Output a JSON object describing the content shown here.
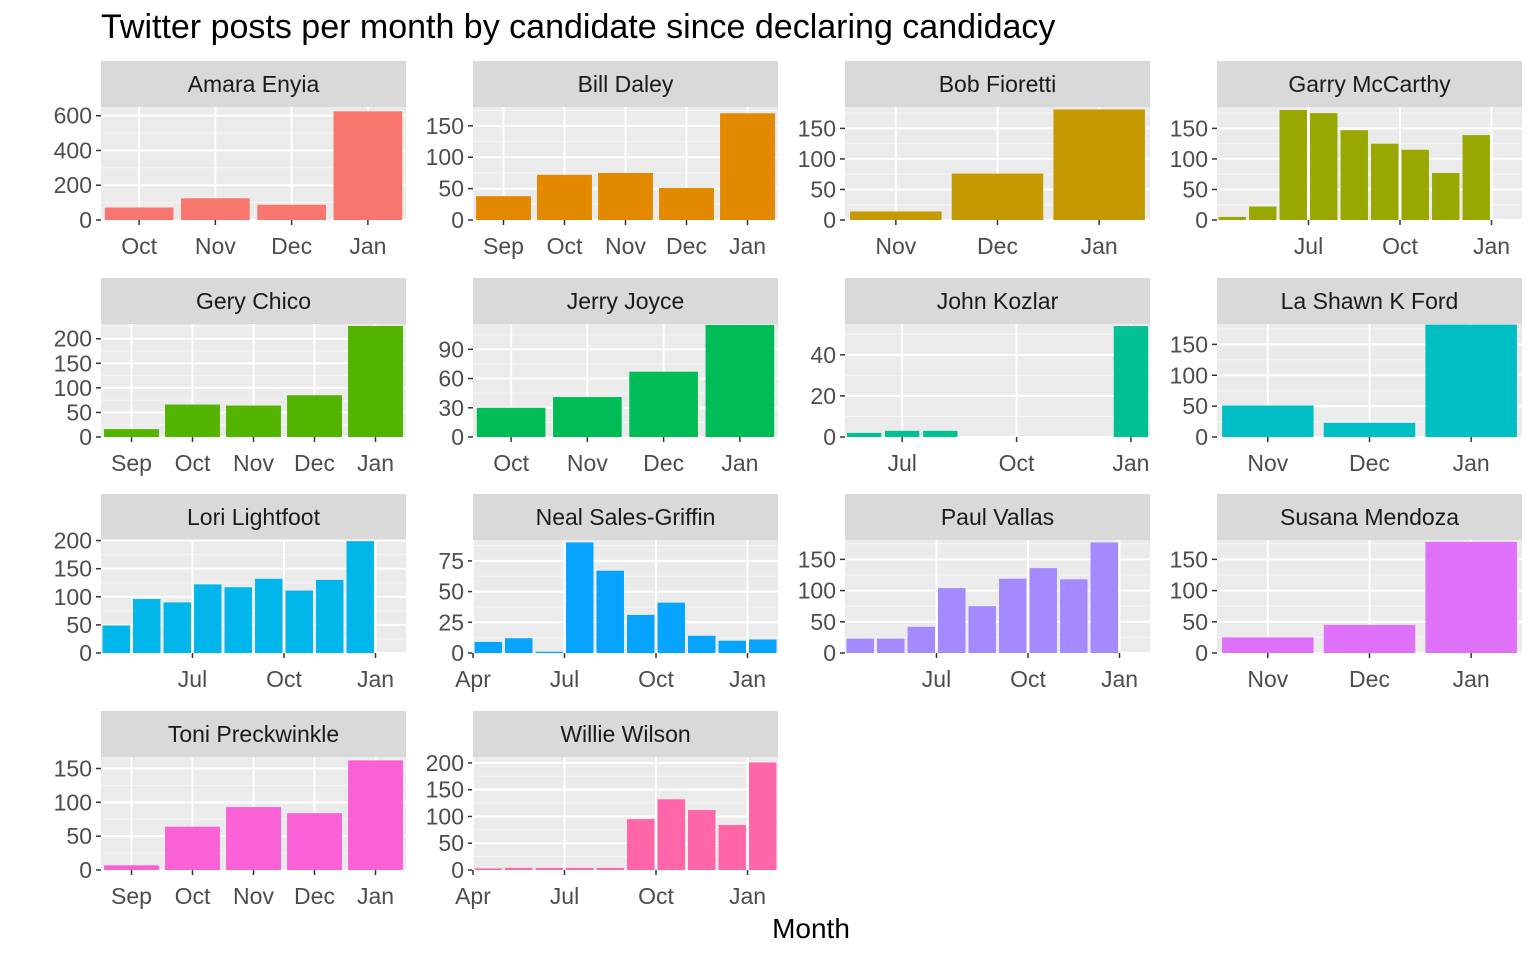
{
  "chart_data": {
    "type": "bar",
    "title": "Twitter posts per month by candidate since declaring candidacy",
    "xlabel": "Month",
    "ylabel": "",
    "grid": true,
    "legend": "none",
    "facets": [
      {
        "name": "Amara Enyia",
        "color": "#F8766D",
        "ylim": [
          0,
          650
        ],
        "yticks": [
          0,
          200,
          400,
          600
        ],
        "xlim": [
          0,
          4
        ],
        "xticks": [
          {
            "label": "Oct",
            "x": 0.5
          },
          {
            "label": "Nov",
            "x": 1.5
          },
          {
            "label": "Dec",
            "x": 2.5
          },
          {
            "label": "Jan",
            "x": 3.5
          }
        ],
        "bars": [
          {
            "x": 0.5,
            "w": 0.9,
            "y": 72
          },
          {
            "x": 1.5,
            "w": 0.9,
            "y": 125
          },
          {
            "x": 2.5,
            "w": 0.9,
            "y": 88
          },
          {
            "x": 3.5,
            "w": 0.9,
            "y": 625
          }
        ]
      },
      {
        "name": "Bill Daley",
        "color": "#E38900",
        "ylim": [
          0,
          180
        ],
        "yticks": [
          0,
          50,
          100,
          150
        ],
        "xlim": [
          0,
          5
        ],
        "xticks": [
          {
            "label": "Sep",
            "x": 0.5
          },
          {
            "label": "Oct",
            "x": 1.5
          },
          {
            "label": "Nov",
            "x": 2.5
          },
          {
            "label": "Dec",
            "x": 3.5
          },
          {
            "label": "Jan",
            "x": 4.5
          }
        ],
        "bars": [
          {
            "x": 0.5,
            "w": 0.9,
            "y": 38
          },
          {
            "x": 1.5,
            "w": 0.9,
            "y": 72
          },
          {
            "x": 2.5,
            "w": 0.9,
            "y": 75
          },
          {
            "x": 3.5,
            "w": 0.9,
            "y": 51
          },
          {
            "x": 4.5,
            "w": 0.9,
            "y": 170
          }
        ]
      },
      {
        "name": "Bob Fioretti",
        "color": "#C49A00",
        "ylim": [
          0,
          185
        ],
        "yticks": [
          0,
          50,
          100,
          150
        ],
        "xlim": [
          0,
          3
        ],
        "xticks": [
          {
            "label": "Nov",
            "x": 0.5
          },
          {
            "label": "Dec",
            "x": 1.5
          },
          {
            "label": "Jan",
            "x": 2.5
          }
        ],
        "bars": [
          {
            "x": 0.5,
            "w": 0.9,
            "y": 14
          },
          {
            "x": 1.5,
            "w": 0.9,
            "y": 76
          },
          {
            "x": 2.5,
            "w": 0.9,
            "y": 181
          }
        ]
      },
      {
        "name": "Garry McCarthy",
        "color": "#99A800",
        "ylim": [
          0,
          185
        ],
        "yticks": [
          0,
          50,
          100,
          150
        ],
        "xlim": [
          0,
          10
        ],
        "xticks": [
          {
            "label": "Jul",
            "x": 3
          },
          {
            "label": "Oct",
            "x": 6
          },
          {
            "label": "Jan",
            "x": 9
          }
        ],
        "bars": [
          {
            "x": 0.5,
            "w": 0.9,
            "y": 5
          },
          {
            "x": 1.5,
            "w": 0.9,
            "y": 22
          },
          {
            "x": 2.5,
            "w": 0.9,
            "y": 180
          },
          {
            "x": 3.5,
            "w": 0.9,
            "y": 175
          },
          {
            "x": 4.5,
            "w": 0.9,
            "y": 147
          },
          {
            "x": 5.5,
            "w": 0.9,
            "y": 125
          },
          {
            "x": 6.5,
            "w": 0.9,
            "y": 115
          },
          {
            "x": 7.5,
            "w": 0.9,
            "y": 77
          },
          {
            "x": 8.5,
            "w": 0.9,
            "y": 139
          }
        ]
      },
      {
        "name": "Gery Chico",
        "color": "#53B400",
        "ylim": [
          0,
          230
        ],
        "yticks": [
          0,
          50,
          100,
          150,
          200
        ],
        "xlim": [
          0,
          5
        ],
        "xticks": [
          {
            "label": "Sep",
            "x": 0.5
          },
          {
            "label": "Oct",
            "x": 1.5
          },
          {
            "label": "Nov",
            "x": 2.5
          },
          {
            "label": "Dec",
            "x": 3.5
          },
          {
            "label": "Jan",
            "x": 4.5
          }
        ],
        "bars": [
          {
            "x": 0.5,
            "w": 0.9,
            "y": 16
          },
          {
            "x": 1.5,
            "w": 0.9,
            "y": 66
          },
          {
            "x": 2.5,
            "w": 0.9,
            "y": 64
          },
          {
            "x": 3.5,
            "w": 0.9,
            "y": 85
          },
          {
            "x": 4.5,
            "w": 0.9,
            "y": 226
          }
        ]
      },
      {
        "name": "Jerry Joyce",
        "color": "#00BC56",
        "ylim": [
          0,
          116
        ],
        "yticks": [
          0,
          30,
          60,
          90
        ],
        "xlim": [
          0,
          4
        ],
        "xticks": [
          {
            "label": "Oct",
            "x": 0.5
          },
          {
            "label": "Nov",
            "x": 1.5
          },
          {
            "label": "Dec",
            "x": 2.5
          },
          {
            "label": "Jan",
            "x": 3.5
          }
        ],
        "bars": [
          {
            "x": 0.5,
            "w": 0.9,
            "y": 30
          },
          {
            "x": 1.5,
            "w": 0.9,
            "y": 41
          },
          {
            "x": 2.5,
            "w": 0.9,
            "y": 67
          },
          {
            "x": 3.5,
            "w": 0.9,
            "y": 115
          }
        ]
      },
      {
        "name": "John Kozlar",
        "color": "#00C094",
        "ylim": [
          0,
          55
        ],
        "yticks": [
          0,
          20,
          40
        ],
        "xlim": [
          0,
          8
        ],
        "xticks": [
          {
            "label": "Jul",
            "x": 1.5
          },
          {
            "label": "Oct",
            "x": 4.5
          },
          {
            "label": "Jan",
            "x": 7.5
          }
        ],
        "bars": [
          {
            "x": 0.5,
            "w": 0.9,
            "y": 2
          },
          {
            "x": 1.5,
            "w": 0.9,
            "y": 3
          },
          {
            "x": 2.5,
            "w": 0.9,
            "y": 3
          },
          {
            "x": 7.5,
            "w": 0.9,
            "y": 54
          }
        ]
      },
      {
        "name": "La Shawn K Ford",
        "color": "#00BFC4",
        "ylim": [
          0,
          183
        ],
        "yticks": [
          0,
          50,
          100,
          150
        ],
        "xlim": [
          0,
          3
        ],
        "xticks": [
          {
            "label": "Nov",
            "x": 0.5
          },
          {
            "label": "Dec",
            "x": 1.5
          },
          {
            "label": "Jan",
            "x": 2.5
          }
        ],
        "bars": [
          {
            "x": 0.5,
            "w": 0.9,
            "y": 51
          },
          {
            "x": 1.5,
            "w": 0.9,
            "y": 23
          },
          {
            "x": 2.5,
            "w": 0.9,
            "y": 182
          }
        ]
      },
      {
        "name": "Lori Lightfoot",
        "color": "#00B6EB",
        "ylim": [
          0,
          201
        ],
        "yticks": [
          0,
          50,
          100,
          150,
          200
        ],
        "xlim": [
          0,
          10
        ],
        "xticks": [
          {
            "label": "Jul",
            "x": 3
          },
          {
            "label": "Oct",
            "x": 6
          },
          {
            "label": "Jan",
            "x": 9
          }
        ],
        "bars": [
          {
            "x": 0.5,
            "w": 0.9,
            "y": 49
          },
          {
            "x": 1.5,
            "w": 0.9,
            "y": 96
          },
          {
            "x": 2.5,
            "w": 0.9,
            "y": 90
          },
          {
            "x": 3.5,
            "w": 0.9,
            "y": 122
          },
          {
            "x": 4.5,
            "w": 0.9,
            "y": 117
          },
          {
            "x": 5.5,
            "w": 0.9,
            "y": 132
          },
          {
            "x": 6.5,
            "w": 0.9,
            "y": 111
          },
          {
            "x": 7.5,
            "w": 0.9,
            "y": 130
          },
          {
            "x": 8.5,
            "w": 0.9,
            "y": 199
          }
        ]
      },
      {
        "name": "Neal Sales-Griffin",
        "color": "#06A4FF",
        "ylim": [
          0,
          92
        ],
        "yticks": [
          0,
          25,
          50,
          75
        ],
        "xlim": [
          0,
          10
        ],
        "xticks": [
          {
            "label": "Apr",
            "x": 0
          },
          {
            "label": "Jul",
            "x": 3
          },
          {
            "label": "Oct",
            "x": 6
          },
          {
            "label": "Jan",
            "x": 9
          }
        ],
        "bars": [
          {
            "x": 0.5,
            "w": 0.9,
            "y": 9
          },
          {
            "x": 1.5,
            "w": 0.9,
            "y": 12
          },
          {
            "x": 2.5,
            "w": 0.9,
            "y": 1
          },
          {
            "x": 3.5,
            "w": 0.9,
            "y": 90
          },
          {
            "x": 4.5,
            "w": 0.9,
            "y": 67
          },
          {
            "x": 5.5,
            "w": 0.9,
            "y": 31
          },
          {
            "x": 6.5,
            "w": 0.9,
            "y": 41
          },
          {
            "x": 7.5,
            "w": 0.9,
            "y": 14
          },
          {
            "x": 8.5,
            "w": 0.9,
            "y": 10
          },
          {
            "x": 9.5,
            "w": 0.9,
            "y": 11
          }
        ]
      },
      {
        "name": "Paul Vallas",
        "color": "#A58AFF",
        "ylim": [
          0,
          181
        ],
        "yticks": [
          0,
          50,
          100,
          150
        ],
        "xlim": [
          0,
          10
        ],
        "xticks": [
          {
            "label": "Jul",
            "x": 3
          },
          {
            "label": "Oct",
            "x": 6
          },
          {
            "label": "Jan",
            "x": 9
          }
        ],
        "bars": [
          {
            "x": 0.5,
            "w": 0.9,
            "y": 23
          },
          {
            "x": 1.5,
            "w": 0.9,
            "y": 23
          },
          {
            "x": 2.5,
            "w": 0.9,
            "y": 42
          },
          {
            "x": 3.5,
            "w": 0.9,
            "y": 104
          },
          {
            "x": 4.5,
            "w": 0.9,
            "y": 75
          },
          {
            "x": 5.5,
            "w": 0.9,
            "y": 119
          },
          {
            "x": 6.5,
            "w": 0.9,
            "y": 136
          },
          {
            "x": 7.5,
            "w": 0.9,
            "y": 118
          },
          {
            "x": 8.5,
            "w": 0.9,
            "y": 177
          }
        ]
      },
      {
        "name": "Susana Mendoza",
        "color": "#DF70F8",
        "ylim": [
          0,
          181
        ],
        "yticks": [
          0,
          50,
          100,
          150
        ],
        "xlim": [
          0,
          3
        ],
        "xticks": [
          {
            "label": "Nov",
            "x": 0.5
          },
          {
            "label": "Dec",
            "x": 1.5
          },
          {
            "label": "Jan",
            "x": 2.5
          }
        ],
        "bars": [
          {
            "x": 0.5,
            "w": 0.9,
            "y": 25
          },
          {
            "x": 1.5,
            "w": 0.9,
            "y": 45
          },
          {
            "x": 2.5,
            "w": 0.9,
            "y": 178
          }
        ]
      },
      {
        "name": "Toni Preckwinkle",
        "color": "#FB61D7",
        "ylim": [
          0,
          167
        ],
        "yticks": [
          0,
          50,
          100,
          150
        ],
        "xlim": [
          0,
          5
        ],
        "xticks": [
          {
            "label": "Sep",
            "x": 0.5
          },
          {
            "label": "Oct",
            "x": 1.5
          },
          {
            "label": "Nov",
            "x": 2.5
          },
          {
            "label": "Dec",
            "x": 3.5
          },
          {
            "label": "Jan",
            "x": 4.5
          }
        ],
        "bars": [
          {
            "x": 0.5,
            "w": 0.9,
            "y": 7
          },
          {
            "x": 1.5,
            "w": 0.9,
            "y": 64
          },
          {
            "x": 2.5,
            "w": 0.9,
            "y": 93
          },
          {
            "x": 3.5,
            "w": 0.9,
            "y": 84
          },
          {
            "x": 4.5,
            "w": 0.9,
            "y": 162
          }
        ]
      },
      {
        "name": "Willie Wilson",
        "color": "#FF66A8",
        "ylim": [
          0,
          211
        ],
        "yticks": [
          0,
          50,
          100,
          150,
          200
        ],
        "xlim": [
          0,
          10
        ],
        "xticks": [
          {
            "label": "Apr",
            "x": 0
          },
          {
            "label": "Jul",
            "x": 3
          },
          {
            "label": "Oct",
            "x": 6
          },
          {
            "label": "Jan",
            "x": 9
          }
        ],
        "bars": [
          {
            "x": 0.5,
            "w": 0.9,
            "y": 3
          },
          {
            "x": 1.5,
            "w": 0.9,
            "y": 4
          },
          {
            "x": 2.5,
            "w": 0.9,
            "y": 4
          },
          {
            "x": 3.5,
            "w": 0.9,
            "y": 4
          },
          {
            "x": 4.5,
            "w": 0.9,
            "y": 4
          },
          {
            "x": 5.5,
            "w": 0.9,
            "y": 95
          },
          {
            "x": 6.5,
            "w": 0.9,
            "y": 132
          },
          {
            "x": 7.5,
            "w": 0.9,
            "y": 112
          },
          {
            "x": 8.5,
            "w": 0.9,
            "y": 84
          },
          {
            "x": 9.5,
            "w": 0.9,
            "y": 201
          }
        ]
      }
    ]
  }
}
